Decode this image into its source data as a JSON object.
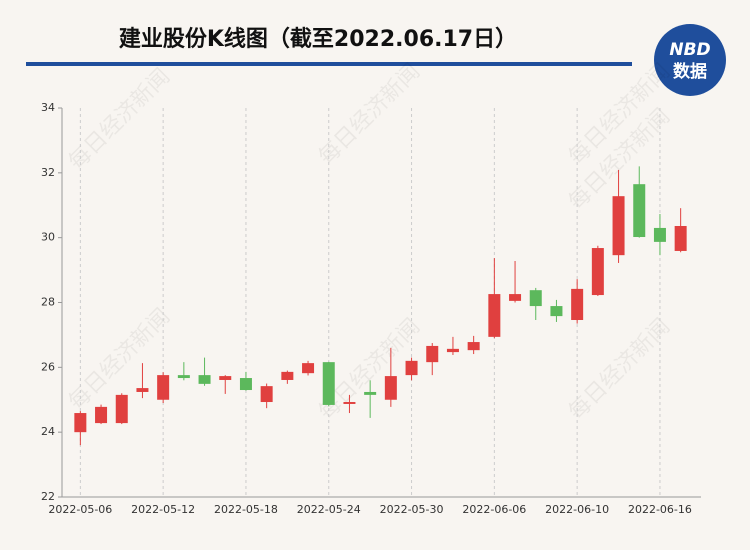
{
  "chart_data": {
    "type": "candlestick",
    "title": "建业股份K线图（截至2022.06.17日）",
    "logo": {
      "top": "NBD",
      "bottom": "数据"
    },
    "watermark": "每日经济新闻",
    "categories": [
      "2022-05-06",
      null,
      null,
      null,
      "2022-05-12",
      null,
      null,
      null,
      "2022-05-18",
      null,
      null,
      null,
      "2022-05-24",
      null,
      null,
      null,
      "2022-05-30",
      null,
      null,
      null,
      "2022-06-06",
      null,
      null,
      null,
      "2022-06-10",
      null,
      null,
      null,
      "2022-06-16",
      null
    ],
    "open": [
      24.0,
      24.28,
      24.28,
      25.24,
      25.0,
      25.76,
      25.76,
      25.61,
      25.67,
      24.93,
      25.61,
      25.82,
      26.16,
      24.87,
      25.24,
      25.0,
      25.76,
      26.16,
      26.47,
      26.53,
      26.94,
      28.05,
      28.38,
      27.89,
      27.46,
      28.23,
      29.46,
      31.65,
      30.3,
      29.59
    ],
    "high": [
      24.65,
      24.85,
      25.2,
      26.13,
      25.85,
      26.16,
      26.3,
      25.76,
      25.86,
      25.5,
      25.9,
      26.2,
      26.17,
      25.15,
      25.6,
      26.6,
      26.3,
      26.75,
      26.94,
      26.97,
      29.37,
      29.28,
      28.45,
      28.08,
      28.72,
      29.75,
      32.09,
      32.2,
      30.73,
      30.91
    ],
    "low": [
      23.6,
      24.25,
      24.25,
      25.05,
      24.9,
      25.6,
      25.43,
      25.18,
      25.28,
      24.74,
      25.49,
      25.75,
      24.8,
      24.59,
      24.44,
      24.78,
      25.6,
      25.76,
      26.38,
      26.41,
      26.9,
      28.0,
      27.46,
      27.4,
      27.35,
      28.2,
      29.22,
      30.0,
      29.46,
      29.55
    ],
    "close": [
      24.59,
      24.78,
      25.15,
      25.36,
      25.76,
      25.67,
      25.49,
      25.73,
      25.3,
      25.42,
      25.86,
      26.13,
      24.84,
      24.93,
      25.15,
      25.73,
      26.2,
      26.66,
      26.57,
      26.78,
      28.26,
      28.26,
      27.89,
      27.58,
      28.42,
      29.68,
      31.28,
      30.02,
      29.87,
      30.36
    ],
    "up_color": "#e0403f",
    "down_color": "#5cb85c",
    "ylim": [
      22,
      34
    ],
    "yticks": [
      22,
      24,
      26,
      28,
      30,
      32,
      34
    ],
    "grid": "vertical"
  }
}
